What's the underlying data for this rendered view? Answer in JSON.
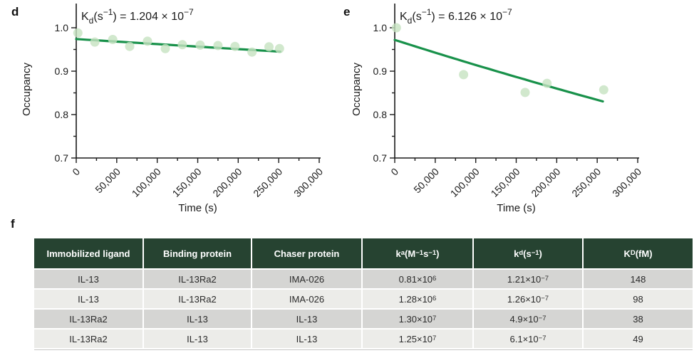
{
  "panels": {
    "d_label": "d",
    "e_label": "e",
    "f_label": "f"
  },
  "colors": {
    "fit_line": "#18914a",
    "marker_fill": "#c5e2c1",
    "axis": "#1a1a1a",
    "table_header_bg": "#264331",
    "table_header_text": "#ffffff",
    "row_dark": "#d5d5d3",
    "row_light": "#ecece9"
  },
  "chart_data": [
    {
      "id": "d",
      "type": "scatter",
      "title": "K_{d}(s^{−1}) = 1.204 × 10^{−7}",
      "xlabel": "Time (s)",
      "ylabel": "Occupancy",
      "xlim": [
        0,
        300000
      ],
      "ylim": [
        0.7,
        1.0
      ],
      "xticks": [
        0,
        50000,
        100000,
        150000,
        200000,
        250000,
        300000
      ],
      "yticks": [
        0.7,
        0.8,
        0.9,
        1.0
      ],
      "minor_x_step": 25000,
      "minor_y_step": 0.05,
      "grid": false,
      "legend": "none",
      "x": [
        2000,
        23000,
        45000,
        66000,
        88000,
        110000,
        131000,
        153000,
        175000,
        196000,
        217000,
        238000,
        251000
      ],
      "y": [
        0.988,
        0.967,
        0.973,
        0.957,
        0.969,
        0.952,
        0.961,
        0.96,
        0.959,
        0.957,
        0.944,
        0.956,
        0.952
      ],
      "fit": {
        "y0": 0.974,
        "kd": 1.204e-07,
        "t_end": 252000
      },
      "ylabel_x": 42
    },
    {
      "id": "e",
      "type": "scatter",
      "title": "K_{d}(s^{−1}) = 6.126 × 10^{−7}",
      "xlabel": "Time (s)",
      "ylabel": "Occupancy",
      "xlim": [
        0,
        300000
      ],
      "ylim": [
        0.7,
        1.0
      ],
      "xticks": [
        0,
        50000,
        100000,
        150000,
        200000,
        250000,
        300000
      ],
      "yticks": [
        0.7,
        0.8,
        0.9,
        1.0
      ],
      "minor_x_step": 25000,
      "minor_y_step": 0.05,
      "grid": false,
      "legend": "none",
      "x": [
        2000,
        85000,
        161000,
        188000,
        258000
      ],
      "y": [
        1.0,
        0.892,
        0.851,
        0.872,
        0.857
      ],
      "fit": {
        "y0": 0.972,
        "kd": 6.126e-07,
        "t_end": 257000
      },
      "ylabel_x": 58
    }
  ],
  "table": {
    "headers": [
      "Immobilized ligand",
      "Binding protein",
      "Chaser protein",
      "k_{a} (M^{−1} s^{−1})",
      "k_{d} (s^{−1})",
      "K_{D} (fM)"
    ],
    "rows": [
      [
        "IL-13",
        "IL-13Ra2",
        "IMA-026",
        "0.81×10^{6}",
        "1.21×10^{−7}",
        "148"
      ],
      [
        "IL-13",
        "IL-13Ra2",
        "IMA-026",
        "1.28×10^{6}",
        "1.26×10^{−7}",
        "98"
      ],
      [
        "IL-13Ra2",
        "IL-13",
        "IL-13",
        "1.30×10^{7}",
        "4.9×10^{−7}",
        "38"
      ],
      [
        "IL-13Ra2",
        "IL-13",
        "IL-13",
        "1.25×10^{7}",
        "6.1×10^{−7}",
        "49"
      ]
    ]
  }
}
